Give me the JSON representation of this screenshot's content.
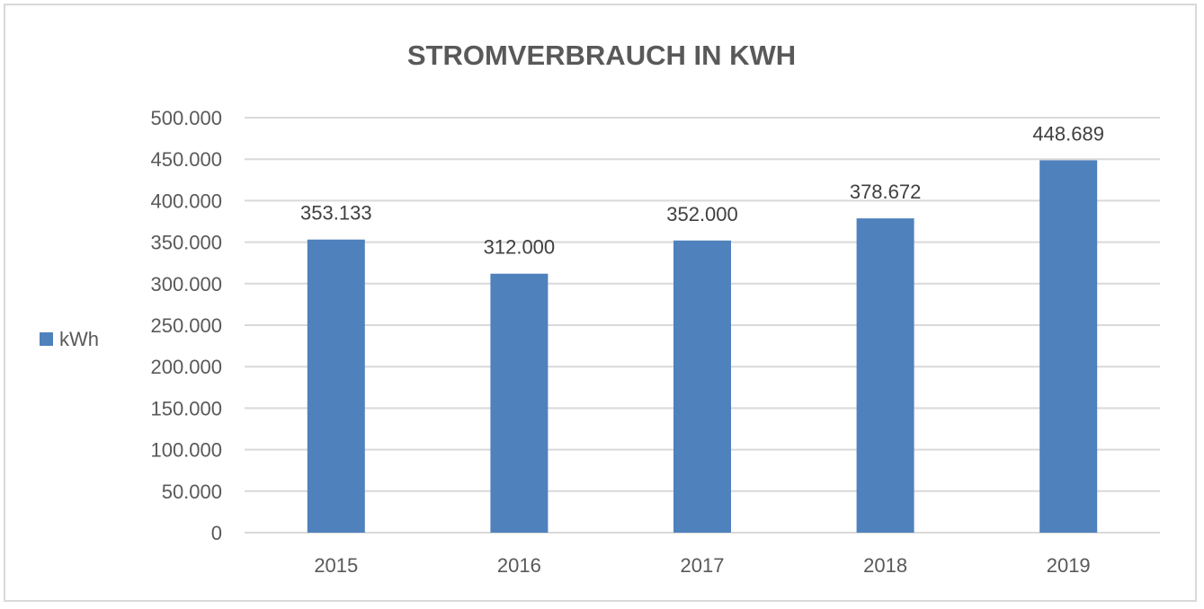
{
  "chart_data": {
    "type": "bar",
    "title": "STROMVERBRAUCH IN KWH",
    "xlabel": "",
    "ylabel": "",
    "categories": [
      "2015",
      "2016",
      "2017",
      "2018",
      "2019"
    ],
    "series": [
      {
        "name": "kWh",
        "values": [
          353133,
          312000,
          352000,
          378672,
          448689
        ],
        "data_labels": [
          "353.133",
          "312.000",
          "352.000",
          "378.672",
          "448.689"
        ],
        "color": "#4f81bd"
      }
    ],
    "ylim": [
      0,
      500000
    ],
    "yticks": [
      0,
      50000,
      100000,
      150000,
      200000,
      250000,
      300000,
      350000,
      400000,
      450000,
      500000
    ],
    "ytick_labels": [
      "0",
      "50.000",
      "100.000",
      "150.000",
      "200.000",
      "250.000",
      "300.000",
      "350.000",
      "400.000",
      "450.000",
      "500.000"
    ],
    "grid": true,
    "gridline_color": "#d9d9d9",
    "legend": {
      "position": "left",
      "entries": [
        "kWh"
      ]
    }
  }
}
